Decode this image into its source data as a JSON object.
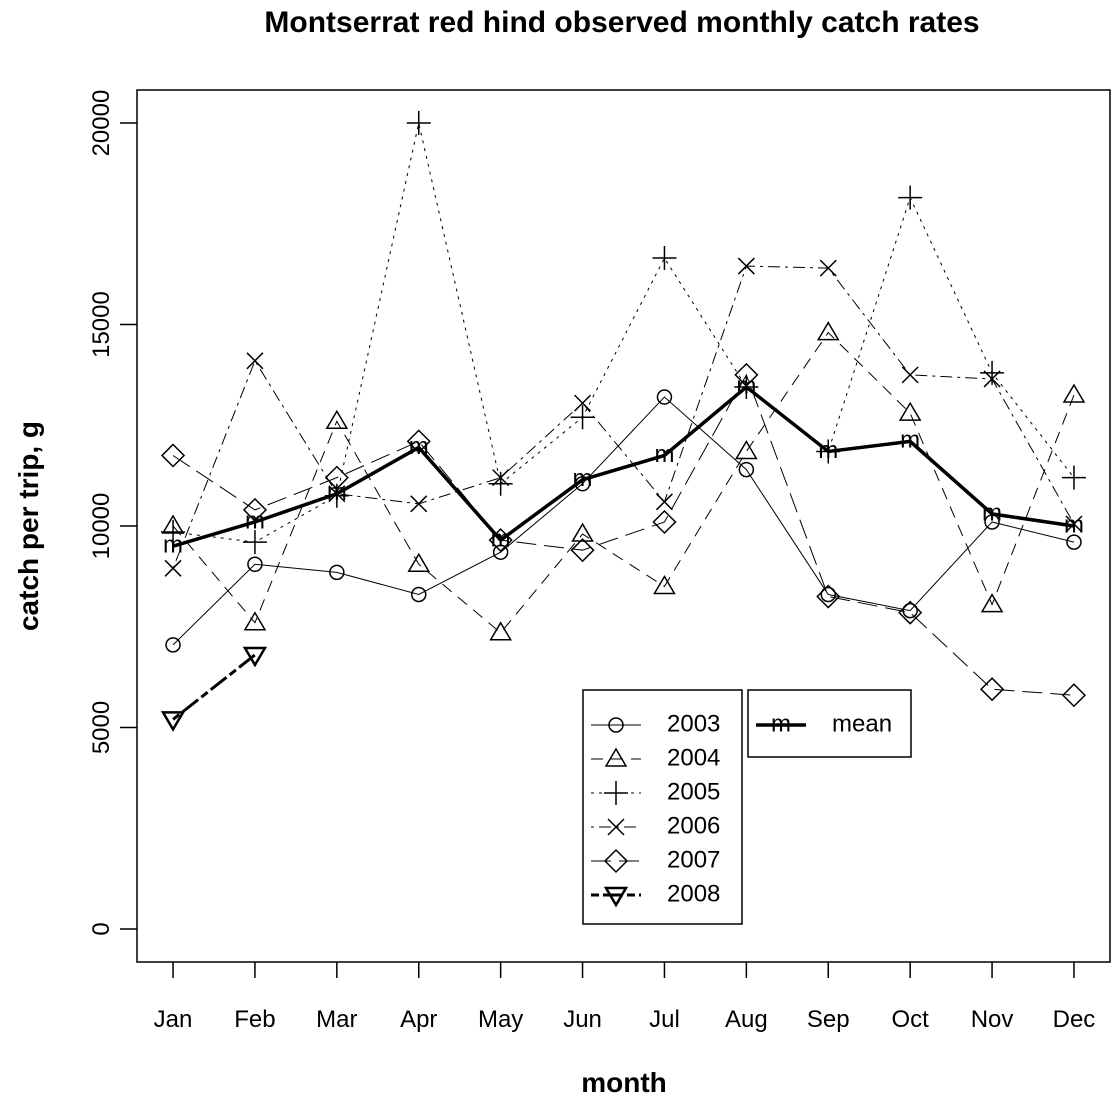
{
  "chart_data": {
    "type": "line",
    "title": "Montserrat red hind observed monthly catch rates",
    "x_label": "month",
    "y_label": "catch per trip, g",
    "categories": [
      "Jan",
      "Feb",
      "Mar",
      "Apr",
      "May",
      "Jun",
      "Jul",
      "Aug",
      "Sep",
      "Oct",
      "Nov",
      "Dec"
    ],
    "ylim": [
      -820,
      20820
    ],
    "yticks": [
      0,
      5000,
      10000,
      15000,
      20000
    ],
    "legend": "bottom",
    "series": [
      {
        "name": "2003",
        "color": "#000000",
        "dash": "solid",
        "width": 1,
        "marker": "circle",
        "values": [
          7050,
          9050,
          8850,
          8300,
          9350,
          11050,
          13200,
          11400,
          8300,
          7900,
          10100,
          9600
        ]
      },
      {
        "name": "2004",
        "color": "#000000",
        "dash": "dashed",
        "width": 1,
        "marker": "triangle",
        "values": [
          10000,
          7600,
          12600,
          9050,
          7350,
          9800,
          8500,
          11850,
          14800,
          12800,
          8050,
          13250
        ]
      },
      {
        "name": "2005",
        "color": "#000000",
        "dash": "dotted",
        "width": 1,
        "marker": "plus",
        "values": [
          9850,
          9600,
          10750,
          20000,
          11050,
          12700,
          16650,
          13450,
          11850,
          18150,
          13800,
          11200
        ]
      },
      {
        "name": "2006",
        "color": "#000000",
        "dash": "dotdash",
        "width": 1,
        "marker": "cross",
        "values": [
          8950,
          14100,
          10800,
          10550,
          11200,
          13050,
          10600,
          16450,
          16400,
          13750,
          13650,
          10050
        ]
      },
      {
        "name": "2007",
        "color": "#000000",
        "dash": "longdash",
        "width": 1,
        "marker": "diamond",
        "values": [
          11750,
          10400,
          11200,
          12100,
          9650,
          9400,
          10100,
          13750,
          8250,
          7850,
          5950,
          5800
        ]
      },
      {
        "name": "2008",
        "color": "#000000",
        "dash": "twodash",
        "width": 3,
        "marker": "down-triangle",
        "values": [
          5200,
          6800,
          null,
          null,
          null,
          null,
          null,
          null,
          null,
          null,
          null,
          null
        ]
      },
      {
        "name": "mean",
        "color": "#000000",
        "dash": "solid",
        "width": 3.5,
        "marker": "m",
        "values": [
          9500,
          10100,
          10800,
          11950,
          9650,
          11150,
          11750,
          13450,
          11850,
          12100,
          10300,
          10000
        ]
      }
    ]
  }
}
